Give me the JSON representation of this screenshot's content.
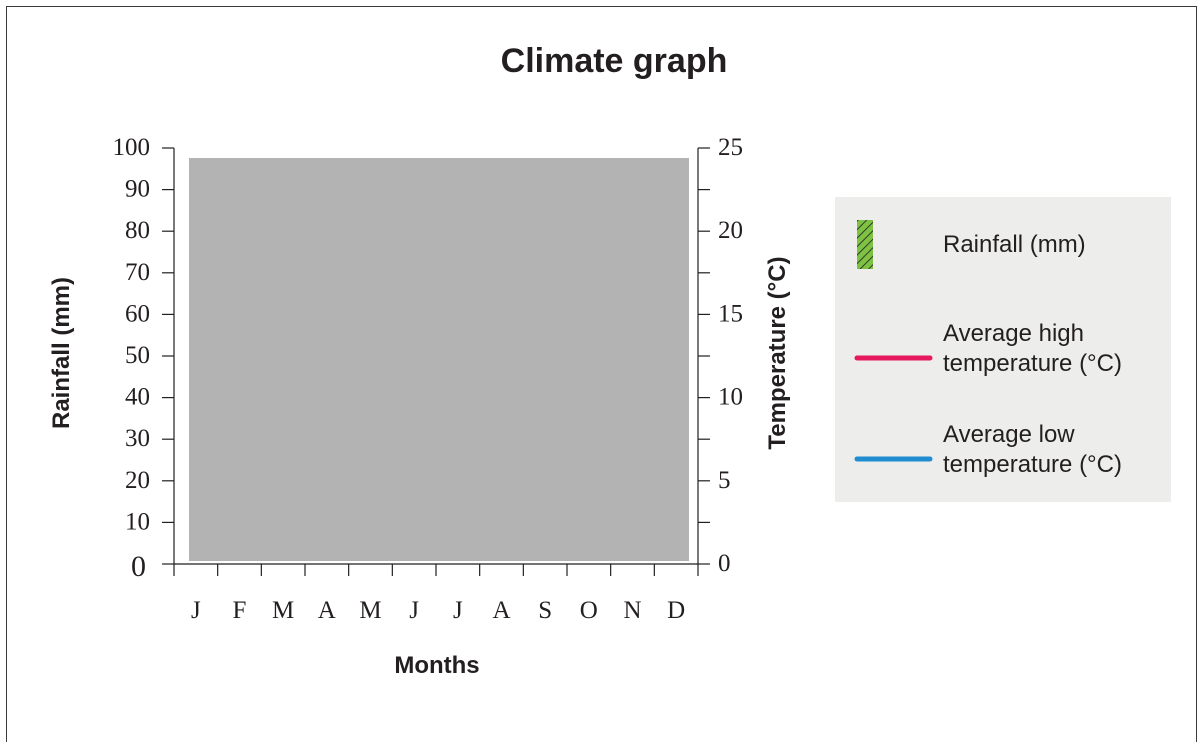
{
  "chart_data": {
    "type": "bar",
    "title": "Climate graph",
    "xlabel": "Months",
    "ylabel": "Rainfall (mm)",
    "y2label": "Temperature (°C)",
    "categories": [
      "J",
      "F",
      "M",
      "A",
      "M",
      "J",
      "J",
      "A",
      "S",
      "O",
      "N",
      "D"
    ],
    "ylim": [
      0,
      100
    ],
    "y2lim": [
      0,
      25
    ],
    "y_ticks": [
      "0",
      "10",
      "20",
      "30",
      "40",
      "50",
      "60",
      "70",
      "80",
      "90",
      "100"
    ],
    "y2_ticks": [
      "0",
      "5",
      "10",
      "15",
      "20",
      "25"
    ],
    "grid": false,
    "plot_fill_color": "#b3b3b3",
    "legend_position": "right",
    "legend_background": "#ededeb",
    "legend": [
      {
        "label": "Rainfall (mm)",
        "lines": [
          "Rainfall (mm)"
        ],
        "marker": "hatched-bar",
        "color": "#7dc242"
      },
      {
        "label": "Average high temperature (°C)",
        "lines": [
          "Average high",
          "temperature (°C)"
        ],
        "marker": "line",
        "color": "#e6185e"
      },
      {
        "label": "Average low temperature (°C)",
        "lines": [
          "Average low",
          "temperature (°C)"
        ],
        "marker": "line",
        "color": "#1f8dd0"
      }
    ],
    "series": []
  }
}
